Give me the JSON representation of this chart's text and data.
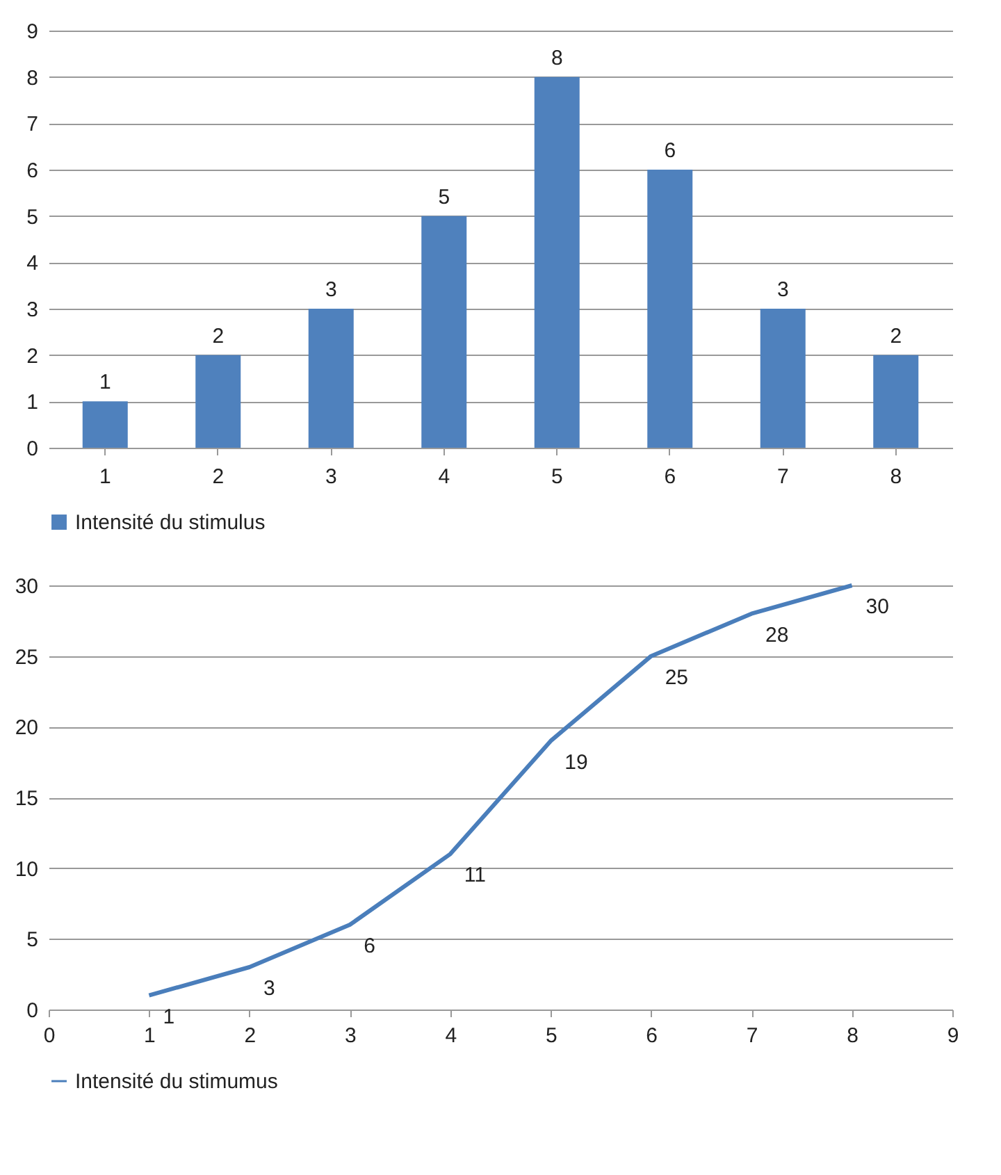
{
  "chart_data": [
    {
      "type": "bar",
      "categories": [
        "1",
        "2",
        "3",
        "4",
        "5",
        "6",
        "7",
        "8"
      ],
      "series": [
        {
          "name": "Intensité du stimulus",
          "color": "#4f81bd",
          "values": [
            1,
            2,
            3,
            5,
            8,
            6,
            3,
            2
          ]
        }
      ],
      "ylim": [
        0,
        9
      ],
      "yticks": [
        0,
        1,
        2,
        3,
        4,
        5,
        6,
        7,
        8,
        9
      ],
      "grid": "y",
      "data_labels": true,
      "legend": "bottom"
    },
    {
      "type": "line",
      "x": [
        1,
        2,
        3,
        4,
        5,
        6,
        7,
        8
      ],
      "series": [
        {
          "name": "Intensité du stimumus",
          "color": "#4a7ebb",
          "values": [
            1,
            3,
            6,
            11,
            19,
            25,
            28,
            30
          ]
        }
      ],
      "xlim": [
        0,
        9
      ],
      "xticks": [
        0,
        1,
        2,
        3,
        4,
        5,
        6,
        7,
        8,
        9
      ],
      "ylim": [
        0,
        30
      ],
      "yticks": [
        0,
        5,
        10,
        15,
        20,
        25,
        30
      ],
      "grid": "y",
      "data_labels": true,
      "legend": "bottom",
      "marker": "none",
      "line_style": "solid"
    }
  ]
}
